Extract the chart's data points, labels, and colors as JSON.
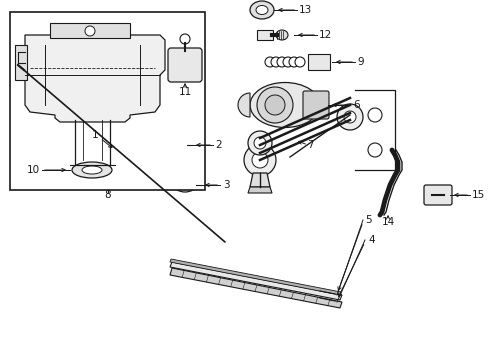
{
  "bg_color": "#ffffff",
  "line_color": "#1a1a1a",
  "label_color": "#1a1a1a",
  "fig_w": 4.89,
  "fig_h": 3.6,
  "dpi": 100,
  "lw": 0.9,
  "label_fontsize": 7.5
}
